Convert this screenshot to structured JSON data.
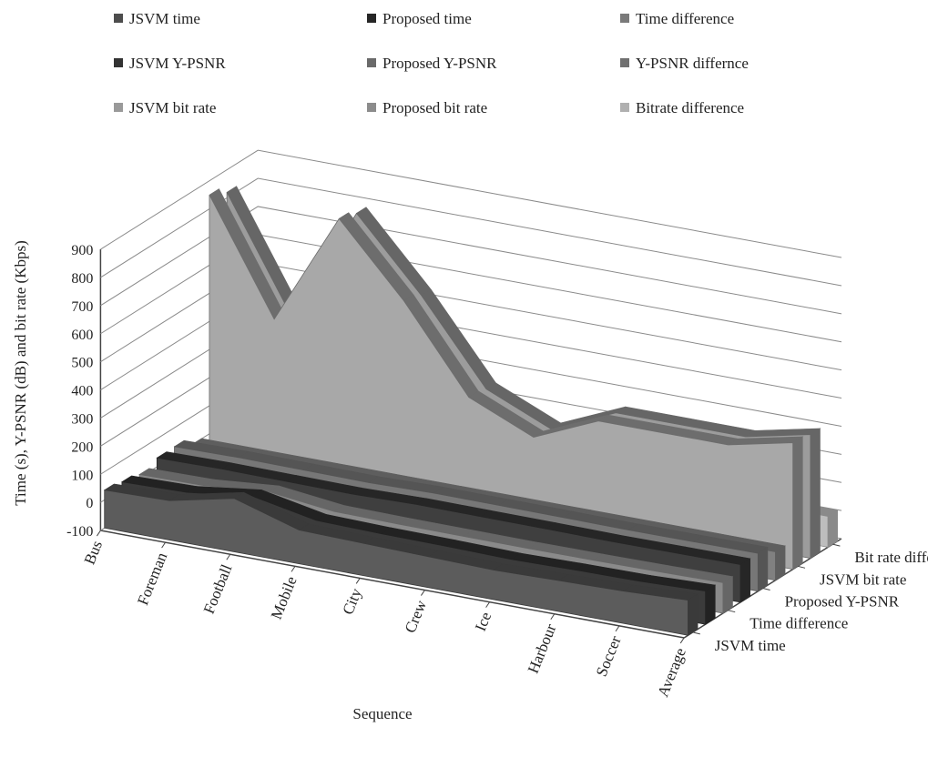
{
  "chart_data": {
    "type": "area",
    "view": "3d-ribbon",
    "title": "",
    "xlabel": "Sequence",
    "ylabel": "Time (s), Y-PSNR (dB) and bit rate (Kbps)",
    "ylim": [
      -100,
      900
    ],
    "yticks": [
      "900",
      "800",
      "700",
      "600",
      "500",
      "400",
      "300",
      "200",
      "100",
      "0",
      "-100"
    ],
    "yticks_values": [
      900,
      800,
      700,
      600,
      500,
      400,
      300,
      200,
      100,
      0,
      -100
    ],
    "categories": [
      "Bus",
      "Foreman",
      "Football",
      "Mobile",
      "City",
      "Crew",
      "Ice",
      "Harbour",
      "Soccer",
      "Average"
    ],
    "depth_labels": [
      "Bit rate difference",
      "JSVM bit rate",
      "Proposed Y-PSNR",
      "Time difference",
      "JSVM time"
    ],
    "gridlines": true,
    "legend_position": "top",
    "legend": [
      {
        "label": "JSVM time",
        "color": "#4d4d4d"
      },
      {
        "label": "Proposed time",
        "color": "#262626"
      },
      {
        "label": "Time difference",
        "color": "#7a7a7a"
      },
      {
        "label": "JSVM Y-PSNR",
        "color": "#333333"
      },
      {
        "label": "Proposed Y-PSNR",
        "color": "#6a6a6a"
      },
      {
        "label": "Y-PSNR differnce",
        "color": "#707070"
      },
      {
        "label": "JSVM bit rate",
        "color": "#9a9a9a"
      },
      {
        "label": "Proposed bit rate",
        "color": "#8c8c8c"
      },
      {
        "label": "Bitrate difference",
        "color": "#b0b0b0"
      }
    ],
    "series": [
      {
        "name": "JSVM time",
        "depth": 0,
        "values": [
          35,
          40,
          90,
          20,
          15,
          10,
          5,
          10,
          15,
          25
        ],
        "fill": "#5c5c5c",
        "edge": "#3a3a3a"
      },
      {
        "name": "Proposed time",
        "depth": 1,
        "values": [
          25,
          30,
          60,
          15,
          10,
          8,
          4,
          8,
          10,
          18
        ],
        "fill": "#3b3b3b",
        "edge": "#222222"
      },
      {
        "name": "Time difference",
        "depth": 2,
        "values": [
          12,
          15,
          35,
          8,
          5,
          4,
          3,
          4,
          6,
          9
        ],
        "fill": "#8a8a8a",
        "edge": "#666666"
      },
      {
        "name": "JSVM Y-PSNR",
        "depth": 3,
        "values": [
          32,
          35,
          33,
          31,
          36,
          35,
          34,
          32,
          33,
          34
        ],
        "fill": "#3f3f3f",
        "edge": "#262626"
      },
      {
        "name": "Proposed Y-PSNR",
        "depth": 4,
        "values": [
          33,
          36,
          34,
          32,
          37,
          36,
          35,
          33,
          34,
          35
        ],
        "fill": "#777777",
        "edge": "#555555"
      },
      {
        "name": "Y-PSNR differnce",
        "depth": 5,
        "values": [
          1,
          1,
          1,
          1,
          1,
          1,
          1,
          1,
          1,
          1
        ],
        "fill": "#808080",
        "edge": "#5e5e5e"
      },
      {
        "name": "JSVM bit rate",
        "depth": 6,
        "values": [
          850,
          450,
          850,
          600,
          300,
          200,
          300,
          300,
          300,
          350
        ],
        "fill": "#a8a8a8",
        "edge": "#6d6d6d"
      },
      {
        "name": "Proposed bit rate",
        "depth": 7,
        "values": [
          820,
          420,
          830,
          580,
          290,
          190,
          290,
          290,
          290,
          340
        ],
        "fill": "#9c9c9c",
        "edge": "#666666"
      },
      {
        "name": "Bitrate difference",
        "depth": 8,
        "values": [
          30,
          30,
          20,
          20,
          10,
          10,
          10,
          10,
          10,
          10
        ],
        "fill": "#bdbdbd",
        "edge": "#8a8a8a"
      }
    ]
  }
}
